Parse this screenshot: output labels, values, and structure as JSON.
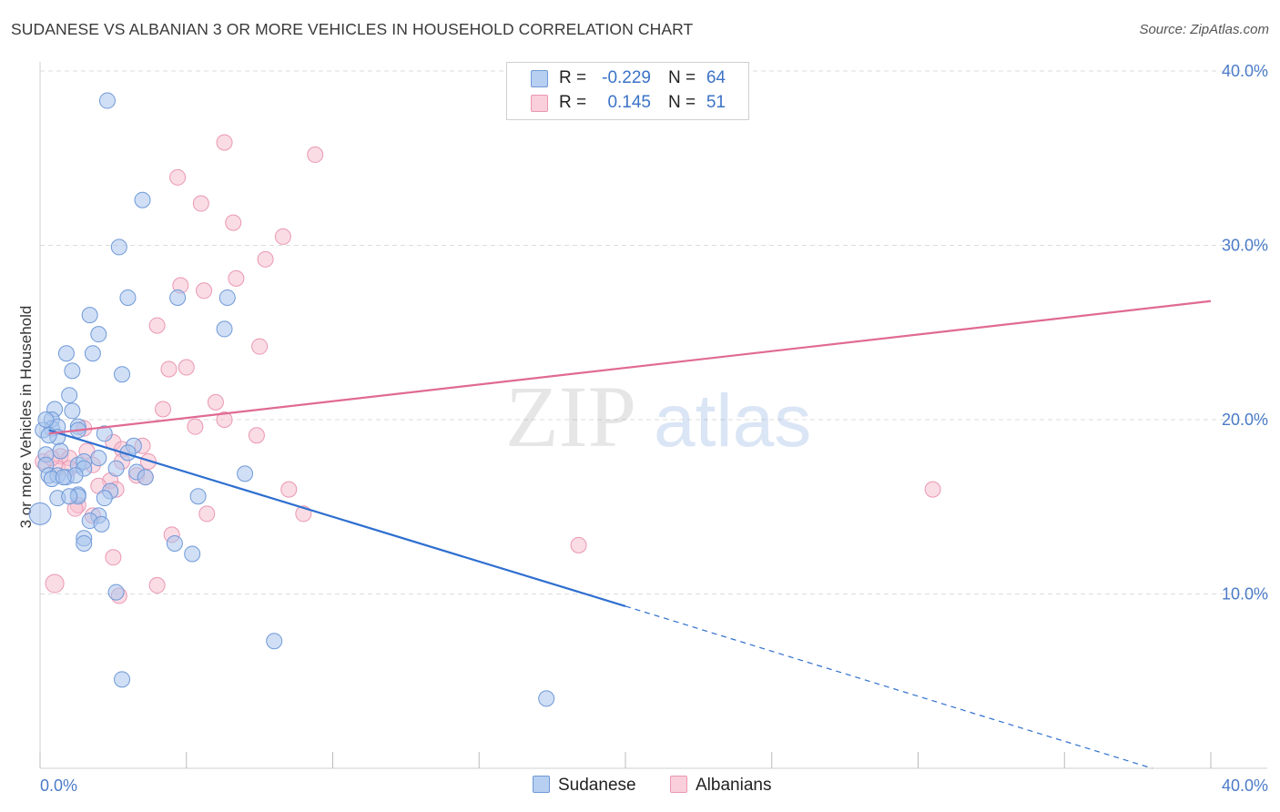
{
  "title": "SUDANESE VS ALBANIAN 3 OR MORE VEHICLES IN HOUSEHOLD CORRELATION CHART",
  "source": "Source: ZipAtlas.com",
  "watermark": {
    "zip": "ZIP",
    "atlas": "atlas"
  },
  "legend": {
    "r_label": "R =",
    "n_label": "N =",
    "rows": [
      {
        "name": "Sudanese",
        "r": "-0.229",
        "n": "64"
      },
      {
        "name": "Albanians",
        "r": "0.145",
        "n": "51"
      }
    ]
  },
  "colors": {
    "sudanese_fill": "#a9c4ec",
    "sudanese_stroke": "#6f99d8",
    "sudanese_line": "#2f6fcf",
    "albanian_fill": "#f6bfd0",
    "albanian_stroke": "#ea97b2",
    "albanian_line": "#e06a94",
    "tick": "#4a7bc8",
    "grid": "#dcdcdc"
  },
  "chart_data": {
    "type": "scatter",
    "title": "SUDANESE VS ALBANIAN 3 OR MORE VEHICLES IN HOUSEHOLD CORRELATION CHART",
    "xlabel": "",
    "ylabel": "3 or more Vehicles in Household",
    "xlim": [
      0,
      40
    ],
    "ylim": [
      0,
      40
    ],
    "x_tick_labels": [
      "0.0%",
      "40.0%"
    ],
    "y_ticks": [
      10,
      20,
      30,
      40
    ],
    "y_tick_labels": [
      "10.0%",
      "20.0%",
      "30.0%",
      "40.0%"
    ],
    "series": [
      {
        "name": "Sudanese",
        "points": [
          [
            2.3,
            38.3
          ],
          [
            3.5,
            32.6
          ],
          [
            2.7,
            29.9
          ],
          [
            3.0,
            27.0
          ],
          [
            4.7,
            27.0
          ],
          [
            6.4,
            27.0
          ],
          [
            1.7,
            26.0
          ],
          [
            2.0,
            24.9
          ],
          [
            6.3,
            25.2
          ],
          [
            0.9,
            23.8
          ],
          [
            1.8,
            23.8
          ],
          [
            1.1,
            22.8
          ],
          [
            2.8,
            22.6
          ],
          [
            1.0,
            21.4
          ],
          [
            0.5,
            20.6
          ],
          [
            1.1,
            20.5
          ],
          [
            0.4,
            20.0
          ],
          [
            0.4,
            19.5
          ],
          [
            0.6,
            19.6
          ],
          [
            0.1,
            19.4
          ],
          [
            1.3,
            19.6
          ],
          [
            2.2,
            19.2
          ],
          [
            0.6,
            19.0
          ],
          [
            0.3,
            19.1
          ],
          [
            3.2,
            18.5
          ],
          [
            0.2,
            18.0
          ],
          [
            0.7,
            18.2
          ],
          [
            3.0,
            18.1
          ],
          [
            2.0,
            17.8
          ],
          [
            0.2,
            17.4
          ],
          [
            1.3,
            17.4
          ],
          [
            1.5,
            17.6
          ],
          [
            1.5,
            17.2
          ],
          [
            2.6,
            17.2
          ],
          [
            3.3,
            17.0
          ],
          [
            0.3,
            16.8
          ],
          [
            0.6,
            16.8
          ],
          [
            0.9,
            16.7
          ],
          [
            3.6,
            16.7
          ],
          [
            7.0,
            16.9
          ],
          [
            0.4,
            16.6
          ],
          [
            2.4,
            15.9
          ],
          [
            1.3,
            15.7
          ],
          [
            1.3,
            15.6
          ],
          [
            0.6,
            15.5
          ],
          [
            2.2,
            15.5
          ],
          [
            1.0,
            15.6
          ],
          [
            5.4,
            15.6
          ],
          [
            0.0,
            14.6
          ],
          [
            2.0,
            14.5
          ],
          [
            1.7,
            14.2
          ],
          [
            2.1,
            14.0
          ],
          [
            1.5,
            13.2
          ],
          [
            1.5,
            12.9
          ],
          [
            4.6,
            12.9
          ],
          [
            5.2,
            12.3
          ],
          [
            2.6,
            10.1
          ],
          [
            8.0,
            7.3
          ],
          [
            2.8,
            5.1
          ],
          [
            17.3,
            4.0
          ],
          [
            1.2,
            16.8
          ],
          [
            0.8,
            16.7
          ],
          [
            0.2,
            20.0
          ],
          [
            1.3,
            19.4
          ]
        ]
      },
      {
        "name": "Albanians",
        "points": [
          [
            6.3,
            35.9
          ],
          [
            9.4,
            35.2
          ],
          [
            4.7,
            33.9
          ],
          [
            5.5,
            32.4
          ],
          [
            6.6,
            31.3
          ],
          [
            8.3,
            30.5
          ],
          [
            7.7,
            29.2
          ],
          [
            6.7,
            28.1
          ],
          [
            4.8,
            27.7
          ],
          [
            5.6,
            27.4
          ],
          [
            4.0,
            25.4
          ],
          [
            7.5,
            24.2
          ],
          [
            4.4,
            22.9
          ],
          [
            5.0,
            23.0
          ],
          [
            6.0,
            21.0
          ],
          [
            4.2,
            20.6
          ],
          [
            6.3,
            20.0
          ],
          [
            5.3,
            19.6
          ],
          [
            7.4,
            19.1
          ],
          [
            1.5,
            19.5
          ],
          [
            0.7,
            17.9
          ],
          [
            1.0,
            17.8
          ],
          [
            1.6,
            18.2
          ],
          [
            2.5,
            18.7
          ],
          [
            3.5,
            18.5
          ],
          [
            2.8,
            18.3
          ],
          [
            1.8,
            17.4
          ],
          [
            3.7,
            17.6
          ],
          [
            0.1,
            17.6
          ],
          [
            0.6,
            17.2
          ],
          [
            1.0,
            17.2
          ],
          [
            3.3,
            16.8
          ],
          [
            3.6,
            16.7
          ],
          [
            2.4,
            16.5
          ],
          [
            2.6,
            16.0
          ],
          [
            8.5,
            16.0
          ],
          [
            30.5,
            16.0
          ],
          [
            1.3,
            15.1
          ],
          [
            1.2,
            14.9
          ],
          [
            5.7,
            14.6
          ],
          [
            9.0,
            14.6
          ],
          [
            4.5,
            13.4
          ],
          [
            18.4,
            12.8
          ],
          [
            2.5,
            12.1
          ],
          [
            0.5,
            10.6
          ],
          [
            4.0,
            10.5
          ],
          [
            2.7,
            9.9
          ],
          [
            1.8,
            14.5
          ],
          [
            0.4,
            17.8
          ],
          [
            2.0,
            16.2
          ],
          [
            2.8,
            17.6
          ]
        ]
      }
    ],
    "trend_lines": [
      {
        "series": "Sudanese",
        "solid": [
          [
            0.3,
            19.4
          ],
          [
            20.0,
            9.3
          ]
        ],
        "dashed": [
          [
            20.0,
            9.3
          ],
          [
            38.0,
            0.0
          ]
        ]
      },
      {
        "series": "Albanians",
        "solid": [
          [
            0.3,
            19.2
          ],
          [
            40.0,
            26.8
          ]
        ]
      }
    ]
  }
}
